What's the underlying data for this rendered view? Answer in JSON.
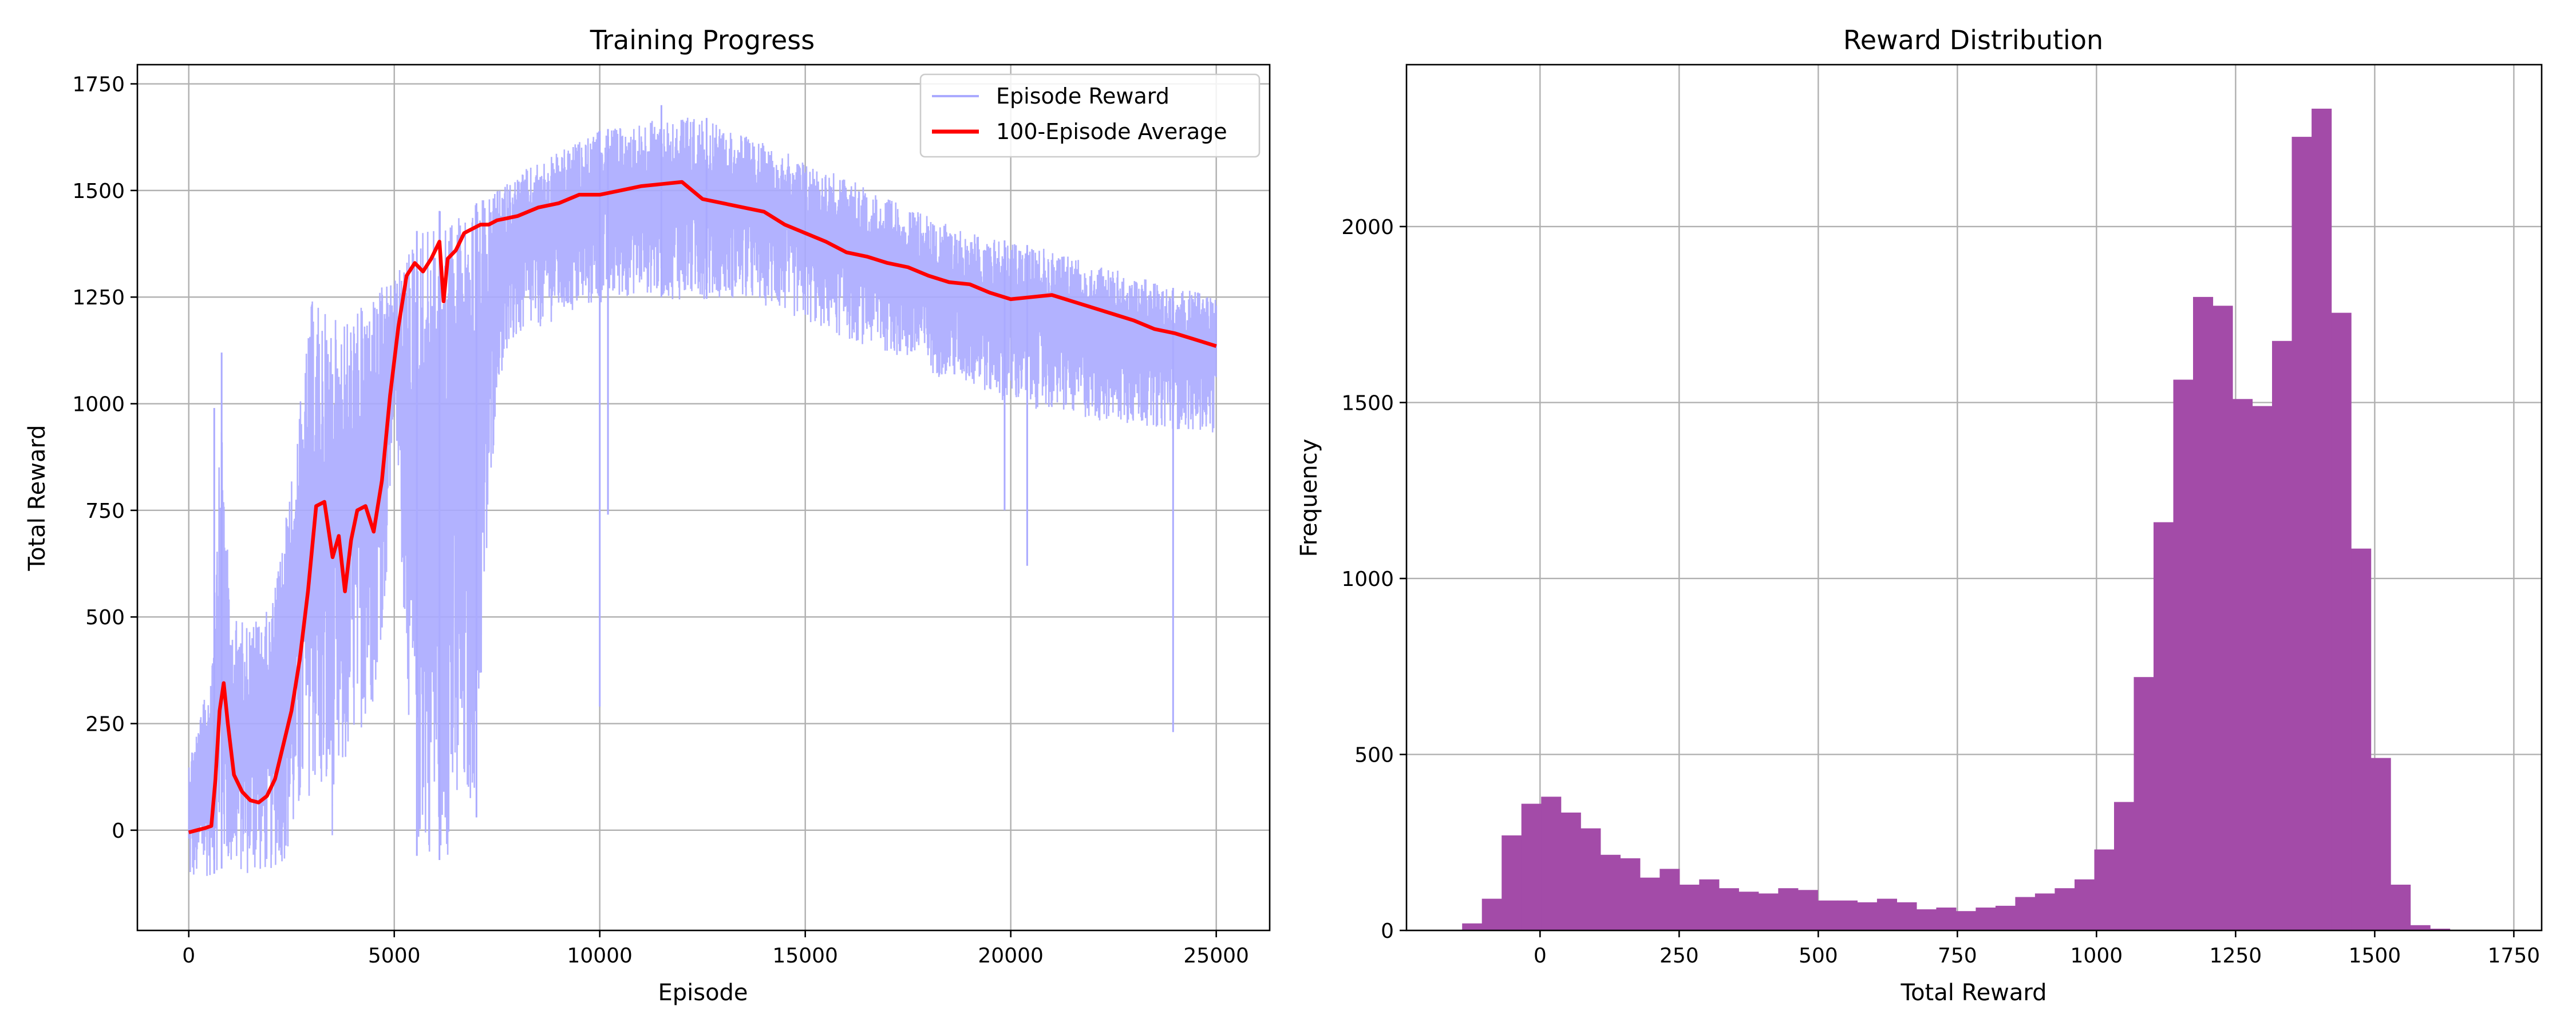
{
  "chart_data": [
    {
      "type": "line",
      "title": "Training Progress",
      "xlabel": "Episode",
      "ylabel": "Total Reward",
      "xlim": [
        -1250,
        26300
      ],
      "ylim": [
        -235,
        1795
      ],
      "xticks": [
        0,
        5000,
        10000,
        15000,
        20000,
        25000
      ],
      "yticks": [
        0,
        250,
        500,
        750,
        1000,
        1250,
        1500,
        1750
      ],
      "grid": true,
      "legend": "top-right",
      "series": [
        {
          "name": "Episode Reward",
          "color": "#aaaaff",
          "style": "noisy-band",
          "x": [
            0,
            500,
            800,
            1000,
            1500,
            2000,
            2500,
            3000,
            3500,
            4000,
            4500,
            4800,
            5000,
            5500,
            6000,
            6500,
            7000,
            7500,
            8000,
            9000,
            10000,
            11000,
            12000,
            13000,
            14000,
            15000,
            16000,
            17000,
            18000,
            19000,
            20000,
            21000,
            22000,
            23000,
            24000,
            25000
          ],
          "low": [
            -130,
            -110,
            -90,
            -100,
            -110,
            -100,
            -60,
            100,
            -20,
            200,
            300,
            550,
            1000,
            -50,
            -60,
            -60,
            100,
            1050,
            1150,
            1200,
            1230,
            1260,
            1240,
            1250,
            1230,
            1190,
            1150,
            1120,
            1070,
            1040,
            1000,
            980,
            960,
            950,
            940,
            930
          ],
          "high": [
            180,
            350,
            1000,
            500,
            490,
            520,
            830,
            1250,
            1200,
            1210,
            1260,
            1280,
            1290,
            1400,
            1450,
            1460,
            1470,
            1500,
            1540,
            1590,
            1640,
            1660,
            1680,
            1650,
            1610,
            1570,
            1530,
            1480,
            1440,
            1400,
            1380,
            1360,
            1330,
            1300,
            1270,
            1260
          ],
          "spikes": [
            {
              "x": 800,
              "y": 1120
            },
            {
              "x": 620,
              "y": 990
            },
            {
              "x": 10000,
              "y": 290
            },
            {
              "x": 10200,
              "y": 740
            },
            {
              "x": 19850,
              "y": 750
            },
            {
              "x": 20400,
              "y": 620
            },
            {
              "x": 23950,
              "y": 230
            },
            {
              "x": 5550,
              "y": -60
            },
            {
              "x": 6100,
              "y": -70
            },
            {
              "x": 7000,
              "y": 30
            },
            {
              "x": 11500,
              "y": 1700
            },
            {
              "x": 12600,
              "y": 1670
            }
          ]
        },
        {
          "name": "100-Episode Average",
          "color": "#ff0000",
          "x": [
            0,
            200,
            400,
            550,
            650,
            750,
            850,
            950,
            1100,
            1300,
            1500,
            1700,
            1900,
            2100,
            2300,
            2500,
            2700,
            2900,
            3100,
            3300,
            3500,
            3650,
            3800,
            3950,
            4100,
            4300,
            4500,
            4700,
            4900,
            5100,
            5300,
            5500,
            5700,
            5900,
            6100,
            6200,
            6300,
            6500,
            6700,
            6900,
            7100,
            7300,
            7500,
            8000,
            8500,
            9000,
            9500,
            10000,
            10500,
            11000,
            11500,
            12000,
            12500,
            13000,
            13500,
            14000,
            14500,
            15000,
            15500,
            16000,
            16500,
            17000,
            17500,
            18000,
            18500,
            19000,
            19500,
            20000,
            20500,
            21000,
            21500,
            22000,
            22500,
            23000,
            23500,
            24000,
            24500,
            25000
          ],
          "values": [
            -5,
            0,
            5,
            10,
            120,
            280,
            345,
            250,
            130,
            90,
            70,
            65,
            80,
            120,
            200,
            280,
            400,
            560,
            760,
            770,
            640,
            690,
            560,
            680,
            750,
            760,
            700,
            820,
            1020,
            1180,
            1300,
            1330,
            1310,
            1340,
            1380,
            1240,
            1340,
            1360,
            1400,
            1410,
            1420,
            1420,
            1430,
            1440,
            1460,
            1470,
            1490,
            1490,
            1500,
            1510,
            1515,
            1520,
            1480,
            1470,
            1460,
            1450,
            1420,
            1400,
            1380,
            1355,
            1345,
            1330,
            1320,
            1300,
            1285,
            1280,
            1260,
            1245,
            1250,
            1255,
            1240,
            1225,
            1210,
            1195,
            1175,
            1165,
            1150,
            1135
          ]
        }
      ]
    },
    {
      "type": "bar",
      "title": "Reward Distribution",
      "xlabel": "Total Reward",
      "ylabel": "Frequency",
      "xlim": [
        -240,
        1800
      ],
      "ylim": [
        0,
        2460
      ],
      "xticks": [
        0,
        250,
        500,
        750,
        1000,
        1250,
        1500,
        1750
      ],
      "yticks": [
        0,
        500,
        1000,
        1500,
        2000
      ],
      "grid": true,
      "color": "#a34ba8",
      "bin_start": -140,
      "bin_width": 35.5,
      "values": [
        20,
        90,
        270,
        360,
        380,
        335,
        290,
        215,
        205,
        150,
        175,
        130,
        145,
        120,
        110,
        105,
        120,
        115,
        85,
        85,
        80,
        90,
        80,
        60,
        65,
        55,
        65,
        70,
        95,
        105,
        120,
        145,
        230,
        365,
        720,
        1160,
        1565,
        1800,
        1775,
        1510,
        1490,
        1675,
        2255,
        2335,
        1755,
        1085,
        490,
        130,
        15,
        5
      ]
    }
  ]
}
